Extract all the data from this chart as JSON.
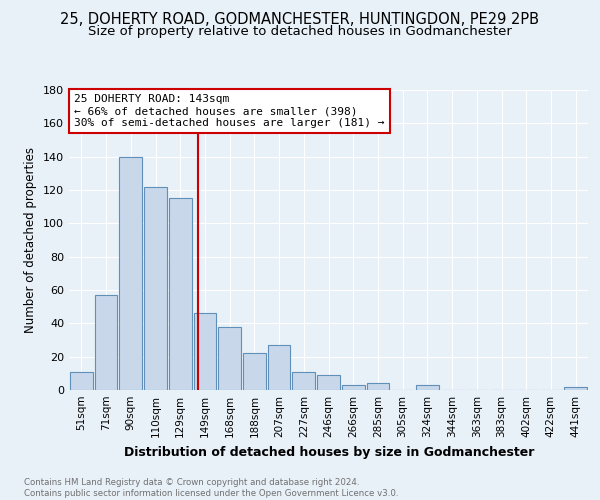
{
  "title": "25, DOHERTY ROAD, GODMANCHESTER, HUNTINGDON, PE29 2PB",
  "subtitle": "Size of property relative to detached houses in Godmanchester",
  "xlabel": "Distribution of detached houses by size in Godmanchester",
  "ylabel": "Number of detached properties",
  "categories": [
    "51sqm",
    "71sqm",
    "90sqm",
    "110sqm",
    "129sqm",
    "149sqm",
    "168sqm",
    "188sqm",
    "207sqm",
    "227sqm",
    "246sqm",
    "266sqm",
    "285sqm",
    "305sqm",
    "324sqm",
    "344sqm",
    "363sqm",
    "383sqm",
    "402sqm",
    "422sqm",
    "441sqm"
  ],
  "values": [
    11,
    57,
    140,
    122,
    115,
    46,
    38,
    22,
    27,
    11,
    9,
    3,
    4,
    0,
    3,
    0,
    0,
    0,
    0,
    0,
    2
  ],
  "bar_color": "#c8d8ea",
  "bar_edge_color": "#6090b8",
  "annotation_title": "25 DOHERTY ROAD: 143sqm",
  "annotation_line1": "← 66% of detached houses are smaller (398)",
  "annotation_line2": "30% of semi-detached houses are larger (181) →",
  "annotation_box_facecolor": "#ffffff",
  "annotation_box_edgecolor": "#cc0000",
  "vline_color": "#cc0000",
  "vline_x_index": 4.7,
  "footer": "Contains HM Land Registry data © Crown copyright and database right 2024.\nContains public sector information licensed under the Open Government Licence v3.0.",
  "ylim": [
    0,
    180
  ],
  "yticks": [
    0,
    20,
    40,
    60,
    80,
    100,
    120,
    140,
    160,
    180
  ],
  "background_color": "#e8f0f8",
  "grid_color": "#ffffff",
  "title_fontsize": 10.5,
  "subtitle_fontsize": 9.5
}
